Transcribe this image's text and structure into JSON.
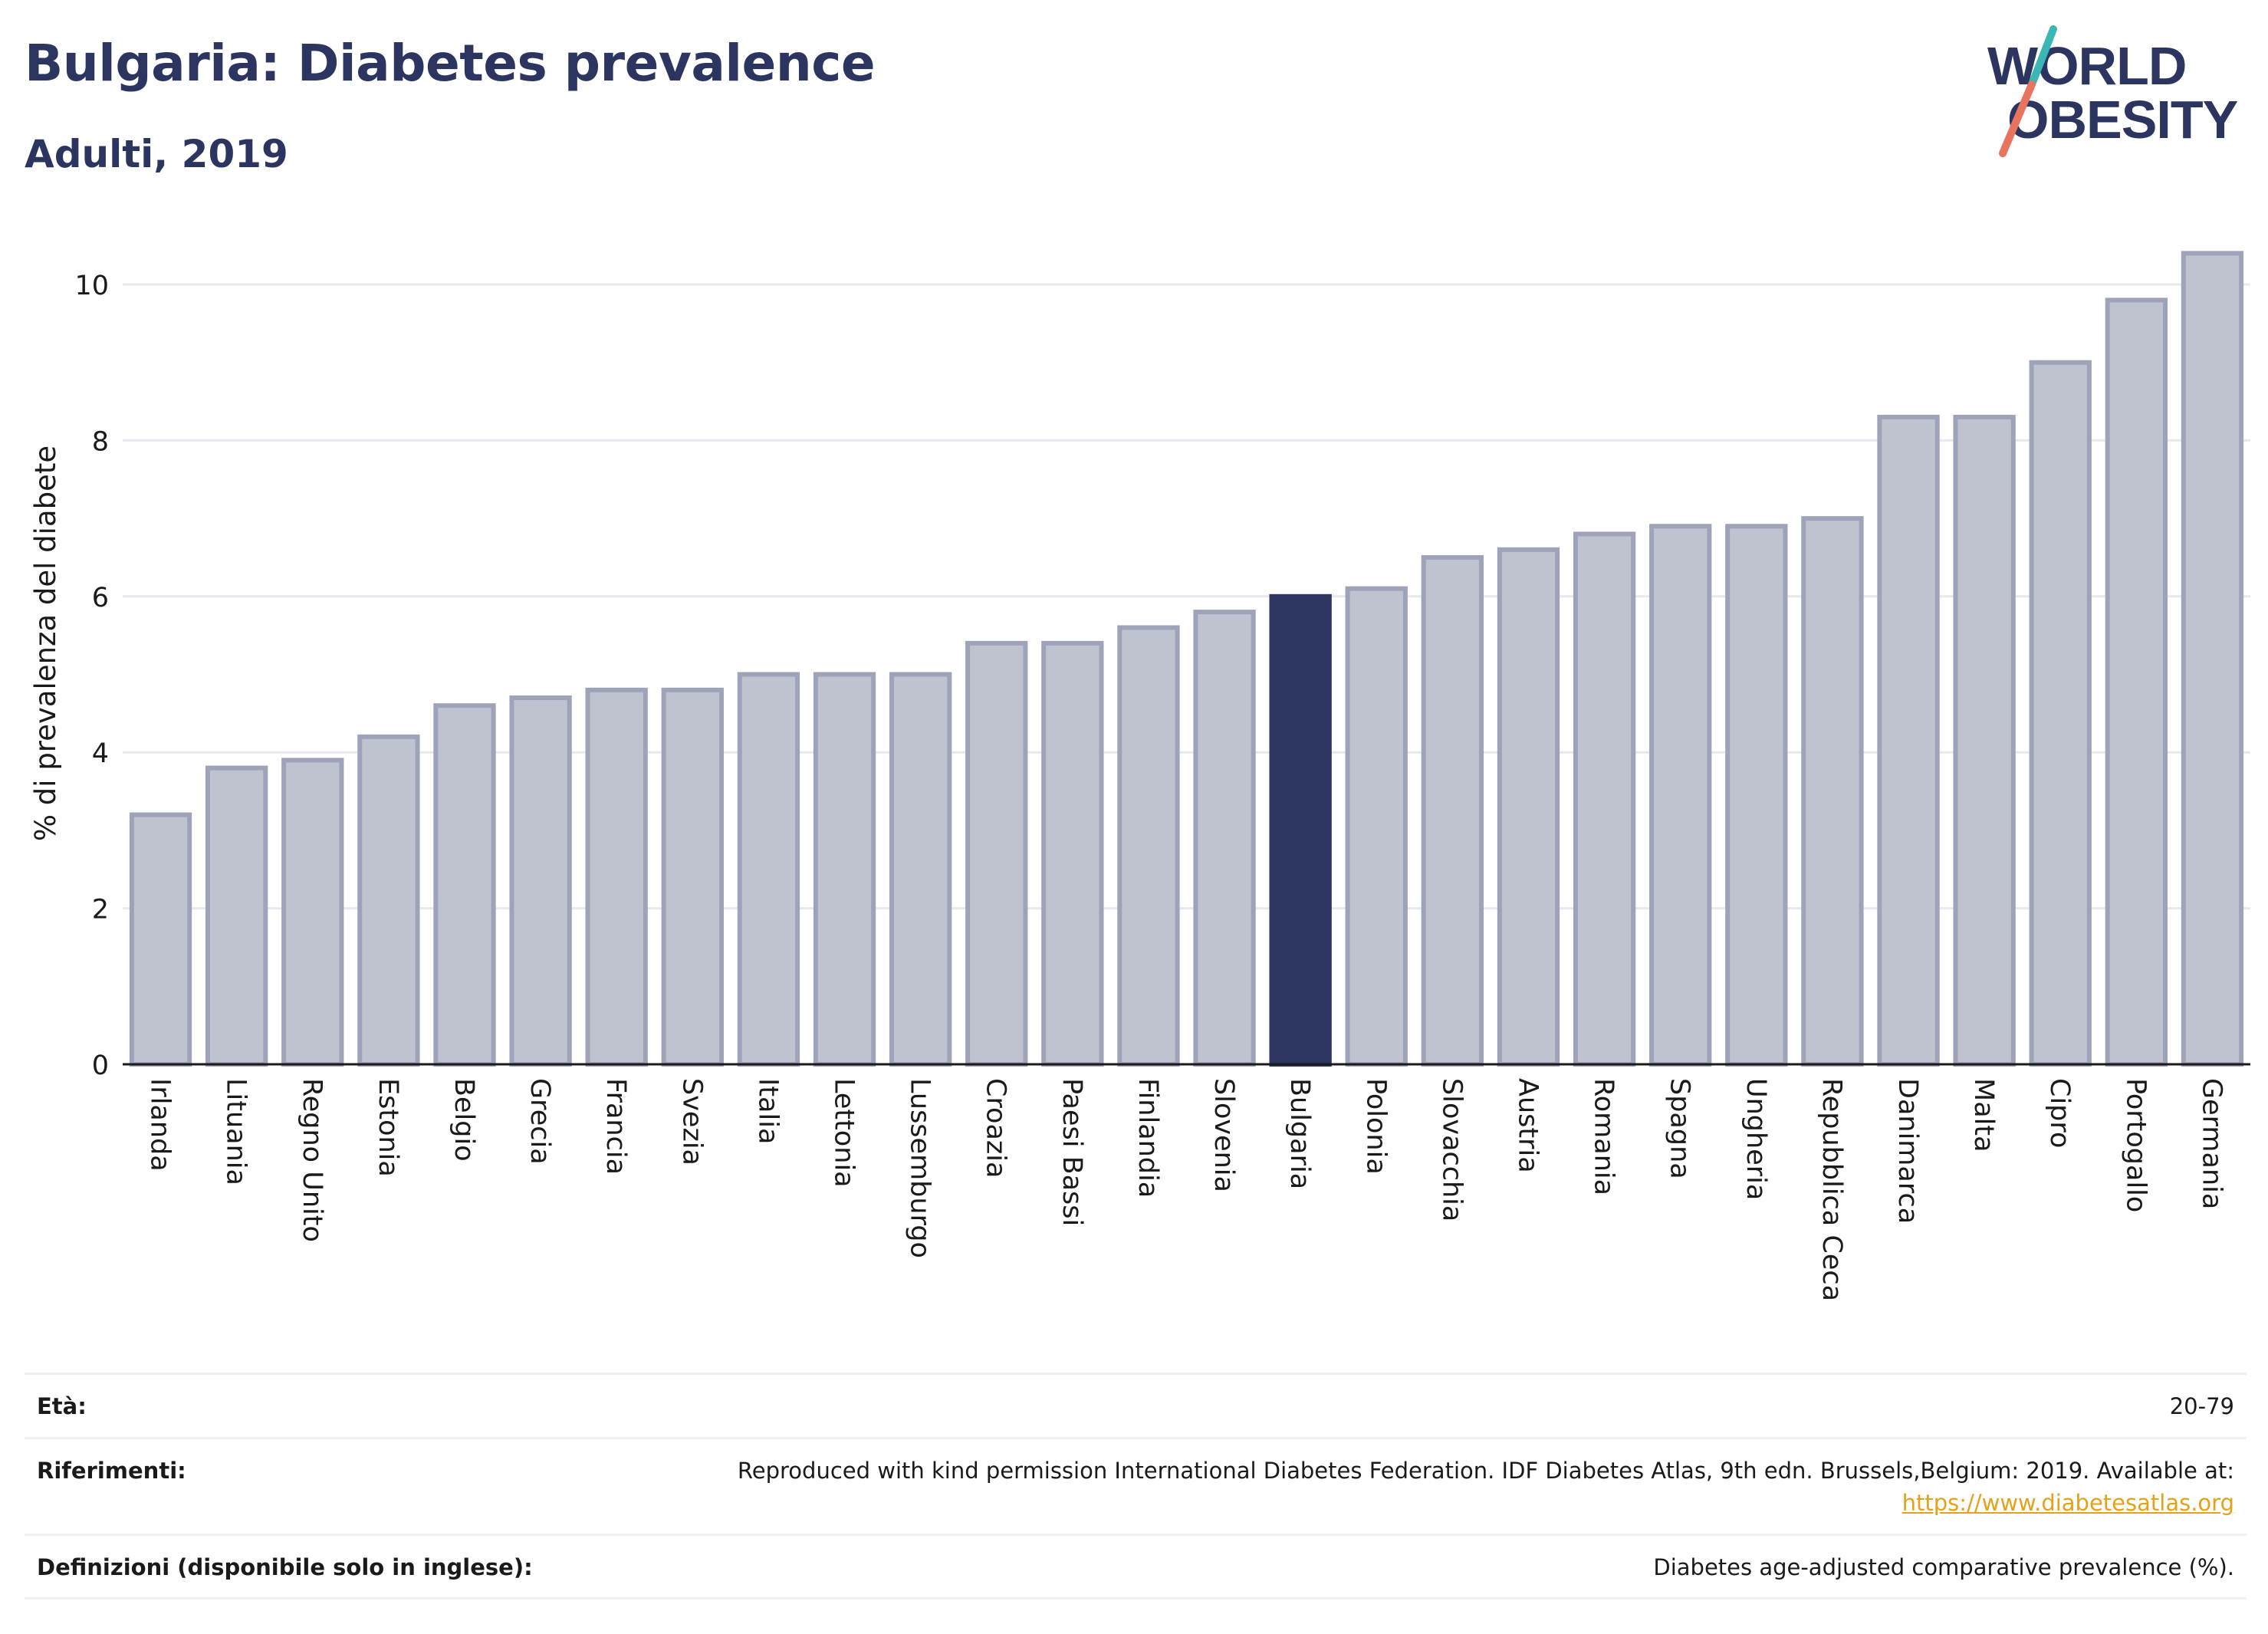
{
  "header": {
    "title": "Bulgaria: Diabetes prevalence",
    "subtitle": "Adulti, 2019"
  },
  "logo": {
    "line1": "WORLD",
    "line2": "OBESITY",
    "colors": {
      "text": "#2b3560",
      "slash_teal": "#3ab7b4",
      "slash_coral": "#e8735e"
    }
  },
  "colors": {
    "bar_default": "#bfc2cf",
    "bar_default_stroke": "#9ea3b9",
    "bar_highlight": "#2b3560",
    "grid": "#e8e9ee",
    "axis": "#1a1a1a",
    "title": "#2b3560",
    "link": "#e3a21a"
  },
  "chart_data": {
    "type": "bar",
    "title": "Bulgaria: Diabetes prevalence",
    "subtitle": "Adulti, 2019",
    "xlabel": "",
    "ylabel": "% di prevalenza del diabete",
    "ylim": [
      0,
      10.6
    ],
    "yticks": [
      0,
      2,
      4,
      6,
      8,
      10
    ],
    "grid": true,
    "legend": "none",
    "highlight": "Bulgaria",
    "categories": [
      "Irlanda",
      "Lituania",
      "Regno Unito",
      "Estonia",
      "Belgio",
      "Grecia",
      "Francia",
      "Svezia",
      "Italia",
      "Lettonia",
      "Lussemburgo",
      "Croazia",
      "Paesi Bassi",
      "Finlandia",
      "Slovenia",
      "Bulgaria",
      "Polonia",
      "Slovacchia",
      "Austria",
      "Romania",
      "Spagna",
      "Ungheria",
      "Repubblica Ceca",
      "Danimarca",
      "Malta",
      "Cipro",
      "Portogallo",
      "Germania"
    ],
    "values": [
      3.2,
      3.8,
      3.9,
      4.2,
      4.6,
      4.7,
      4.8,
      4.8,
      5.0,
      5.0,
      5.0,
      5.4,
      5.4,
      5.6,
      5.8,
      6.0,
      6.1,
      6.5,
      6.6,
      6.8,
      6.9,
      6.9,
      7.0,
      8.3,
      8.3,
      9.0,
      9.8,
      10.4
    ]
  },
  "footer": {
    "rows": [
      {
        "label": "Età:",
        "value": "20-79"
      },
      {
        "label": "Riferimenti:",
        "value": "Reproduced with kind permission International Diabetes Federation. IDF Diabetes Atlas, 9th edn. Brussels,Belgium: 2019. Available at:",
        "link": "https://www.diabetesatlas.org"
      },
      {
        "label": "Definizioni (disponibile solo in inglese):",
        "value": "Diabetes age-adjusted comparative prevalence (%)."
      }
    ]
  }
}
